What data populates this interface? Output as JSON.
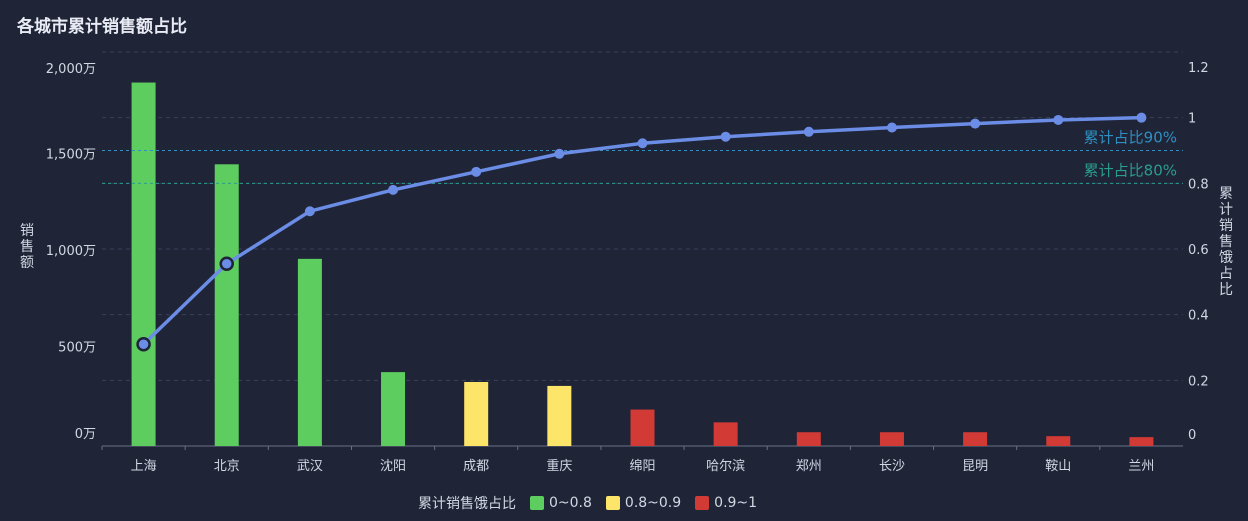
{
  "title": "各城市累计销售额占比",
  "colors": {
    "background": "#1f2437",
    "green": "#5dcd5f",
    "yellow": "#fde56a",
    "red": "#d23a35",
    "line": "#6b8de6",
    "ref90": "#2e8fc2",
    "ref80": "#2a9d8f",
    "grid": "#3a4258",
    "axis": "#6b7285"
  },
  "chart_data": {
    "type": "bar",
    "categories": [
      "上海",
      "北京",
      "武汉",
      "沈阳",
      "成都",
      "重庆",
      "绵阳",
      "哈尔滨",
      "郑州",
      "长沙",
      "昆明",
      "鞍山",
      "兰州"
    ],
    "values": [
      1845,
      1430,
      950,
      375,
      325,
      305,
      185,
      120,
      70,
      70,
      70,
      50,
      45
    ],
    "bar_color_group": [
      0,
      0,
      0,
      0,
      1,
      1,
      2,
      2,
      2,
      2,
      2,
      2,
      2
    ],
    "cumulative_ratio": [
      0.31,
      0.555,
      0.715,
      0.78,
      0.835,
      0.89,
      0.922,
      0.942,
      0.957,
      0.97,
      0.982,
      0.993,
      1.0
    ],
    "highlighted_points": [
      0,
      1
    ],
    "y_left": {
      "label": "销售额",
      "ticks": [
        "2,000万",
        "1,500万",
        "1,000万",
        "500万",
        "0万"
      ],
      "tick_values": [
        2000,
        1500,
        1000,
        500,
        0
      ],
      "range": [
        0,
        2000
      ]
    },
    "y_right": {
      "label": "累计销售饿占比",
      "ticks": [
        "1.2",
        "1",
        "0.8",
        "0.6",
        "0.4",
        "0.2",
        "0"
      ],
      "tick_values": [
        1.2,
        1,
        0.8,
        0.6,
        0.4,
        0.2,
        0
      ],
      "range": [
        0,
        1.2
      ]
    },
    "reference_lines": [
      {
        "label": "累计占比90%",
        "value": 0.9
      },
      {
        "label": "累计占比80%",
        "value": 0.8
      }
    ],
    "legend": {
      "title": "累计销售饿占比",
      "items": [
        "0~0.8",
        "0.8~0.9",
        "0.9~1"
      ]
    },
    "grid": true
  }
}
